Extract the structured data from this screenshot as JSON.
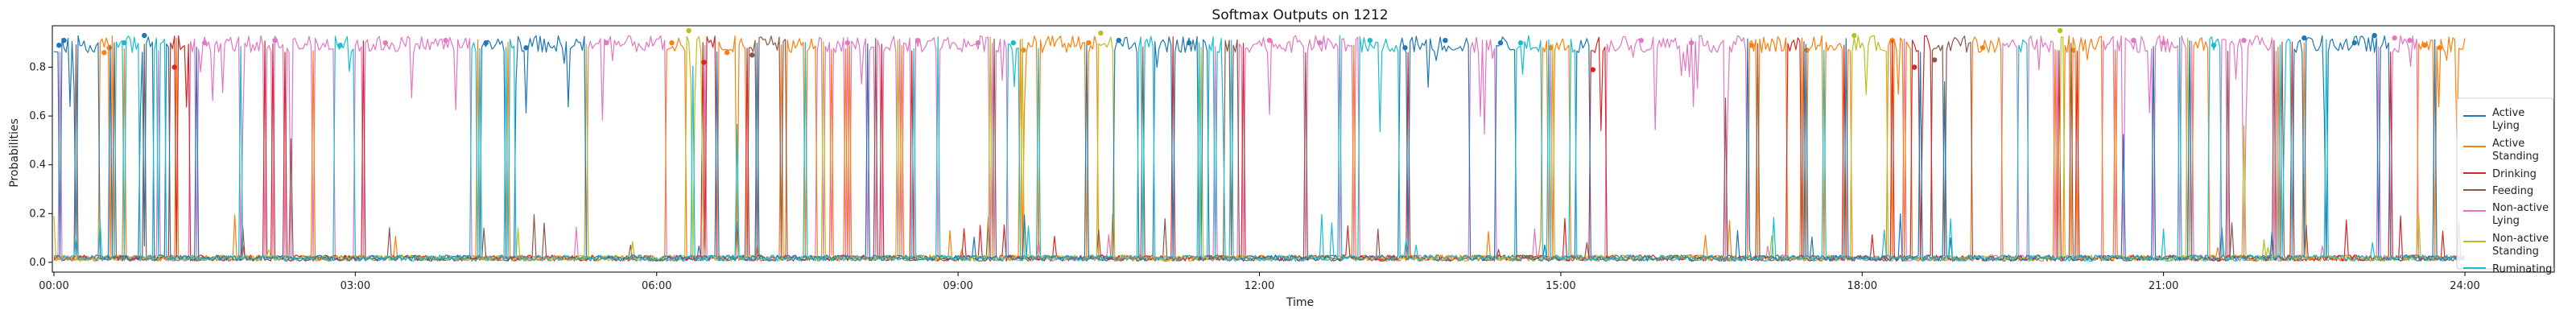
{
  "chart_data": {
    "type": "line",
    "title": "Softmax Outputs on 1212",
    "xlabel": "Time",
    "ylabel": "Probabilities",
    "x_ticks": [
      "00:00",
      "03:00",
      "06:00",
      "09:00",
      "12:00",
      "15:00",
      "18:00",
      "21:00",
      "24:00"
    ],
    "y_ticks": [
      "0.0",
      "0.2",
      "0.4",
      "0.6",
      "0.8"
    ],
    "xlim": [
      0,
      24
    ],
    "ylim": [
      -0.04,
      0.97
    ],
    "x_unit": "hours",
    "legend_position": "right",
    "series": [
      {
        "name": "Active\nLying",
        "color": "#1f77b4",
        "segments": [
          [
            0.0,
            0.35
          ],
          [
            0.85,
            0.95
          ],
          [
            1.05,
            1.15
          ],
          [
            4.25,
            4.35
          ],
          [
            4.6,
            4.85
          ],
          [
            5.0,
            5.1
          ],
          [
            10.55,
            10.75
          ],
          [
            10.95,
            11.05
          ],
          [
            11.25,
            11.45
          ],
          [
            12.2,
            12.3
          ],
          [
            13.4,
            13.55
          ],
          [
            13.75,
            13.95
          ],
          [
            14.35,
            14.5
          ],
          [
            15.15,
            15.25
          ],
          [
            19.7,
            19.8
          ],
          [
            22.3,
            22.5
          ],
          [
            22.8,
            23.2
          ]
        ],
        "dots": [
          [
            0.05,
            0.89
          ],
          [
            0.1,
            0.91
          ],
          [
            0.9,
            0.93
          ],
          [
            4.3,
            0.9
          ],
          [
            4.7,
            0.88
          ],
          [
            10.6,
            0.91
          ],
          [
            11.3,
            0.9
          ],
          [
            13.45,
            0.88
          ],
          [
            13.85,
            0.91
          ],
          [
            14.4,
            0.9
          ],
          [
            22.4,
            0.92
          ],
          [
            22.9,
            0.9
          ],
          [
            23.1,
            0.93
          ]
        ]
      },
      {
        "name": "Active\nStanding",
        "color": "#ff7f0e",
        "segments": [
          [
            0.45,
            0.55
          ],
          [
            6.1,
            6.2
          ],
          [
            6.6,
            6.75
          ],
          [
            7.3,
            7.4
          ],
          [
            9.6,
            9.7
          ],
          [
            10.2,
            10.35
          ],
          [
            14.8,
            15.0
          ],
          [
            16.85,
            17.0
          ],
          [
            17.4,
            17.55
          ],
          [
            18.25,
            18.4
          ],
          [
            19.1,
            19.25
          ],
          [
            20.0,
            20.15
          ],
          [
            21.3,
            21.4
          ],
          [
            23.55,
            23.8
          ]
        ],
        "dots": [
          [
            0.5,
            0.86
          ],
          [
            0.55,
            0.88
          ],
          [
            6.15,
            0.9
          ],
          [
            6.7,
            0.86
          ],
          [
            9.65,
            0.87
          ],
          [
            10.3,
            0.9
          ],
          [
            14.9,
            0.88
          ],
          [
            16.9,
            0.89
          ],
          [
            17.45,
            0.87
          ],
          [
            18.3,
            0.91
          ],
          [
            19.2,
            0.88
          ],
          [
            20.1,
            0.87
          ],
          [
            23.6,
            0.89
          ],
          [
            23.75,
            0.88
          ]
        ]
      },
      {
        "name": "Drinking",
        "color": "#d62728",
        "segments": [
          [
            1.15,
            1.25
          ],
          [
            6.45,
            6.5
          ],
          [
            15.3,
            15.35
          ],
          [
            17.25,
            17.3
          ],
          [
            18.5,
            18.55
          ],
          [
            22.0,
            22.05
          ]
        ],
        "dots": [
          [
            1.2,
            0.8
          ],
          [
            6.47,
            0.82
          ],
          [
            15.32,
            0.79
          ],
          [
            18.52,
            0.8
          ]
        ]
      },
      {
        "name": "Feeding",
        "color": "#8c564b",
        "segments": [
          [
            6.9,
            7.0
          ],
          [
            11.65,
            11.7
          ],
          [
            14.6,
            14.65
          ],
          [
            18.7,
            18.75
          ]
        ],
        "dots": [
          [
            6.95,
            0.85
          ],
          [
            18.72,
            0.83
          ]
        ]
      },
      {
        "name": "Non-active\nLying",
        "color": "#e377c2",
        "segments": [
          [
            1.35,
            2.75
          ],
          [
            3.0,
            4.1
          ],
          [
            5.3,
            5.95
          ],
          [
            7.6,
            9.5
          ],
          [
            11.8,
            12.9
          ],
          [
            14.1,
            14.3
          ],
          [
            15.45,
            16.6
          ],
          [
            19.4,
            19.9
          ],
          [
            20.4,
            21.2
          ],
          [
            21.6,
            22.1
          ],
          [
            23.25,
            23.5
          ]
        ],
        "dots": [
          [
            1.5,
            0.9
          ],
          [
            2.2,
            0.91
          ],
          [
            3.3,
            0.9
          ],
          [
            3.9,
            0.91
          ],
          [
            5.5,
            0.9
          ],
          [
            7.9,
            0.9
          ],
          [
            8.6,
            0.91
          ],
          [
            9.2,
            0.9
          ],
          [
            12.1,
            0.91
          ],
          [
            12.6,
            0.9
          ],
          [
            15.8,
            0.91
          ],
          [
            16.3,
            0.9
          ],
          [
            20.7,
            0.91
          ],
          [
            21.0,
            0.9
          ],
          [
            21.8,
            0.91
          ],
          [
            23.3,
            0.92
          ],
          [
            23.45,
            0.91
          ]
        ]
      },
      {
        "name": "Non-active\nStanding",
        "color": "#bcbd22",
        "segments": [
          [
            6.3,
            6.35
          ],
          [
            10.4,
            10.45
          ],
          [
            17.9,
            17.95
          ],
          [
            19.95,
            20.0
          ]
        ],
        "dots": [
          [
            6.32,
            0.95
          ],
          [
            10.42,
            0.94
          ],
          [
            17.92,
            0.93
          ],
          [
            19.97,
            0.95
          ]
        ]
      },
      {
        "name": "Ruminating",
        "color": "#17becf",
        "segments": [
          [
            0.6,
            0.8
          ],
          [
            1.0,
            1.1
          ],
          [
            2.8,
            2.95
          ],
          [
            4.15,
            4.25
          ],
          [
            4.5,
            4.6
          ],
          [
            9.5,
            9.6
          ],
          [
            10.8,
            10.95
          ],
          [
            11.5,
            11.6
          ],
          [
            13.0,
            13.35
          ],
          [
            14.55,
            14.75
          ],
          [
            15.1,
            15.15
          ],
          [
            19.55,
            19.65
          ],
          [
            21.45,
            21.55
          ],
          [
            22.15,
            22.25
          ]
        ],
        "dots": [
          [
            0.7,
            0.9
          ],
          [
            2.85,
            0.89
          ],
          [
            9.55,
            0.9
          ],
          [
            13.1,
            0.91
          ],
          [
            14.6,
            0.9
          ],
          [
            21.5,
            0.89
          ]
        ]
      }
    ]
  }
}
